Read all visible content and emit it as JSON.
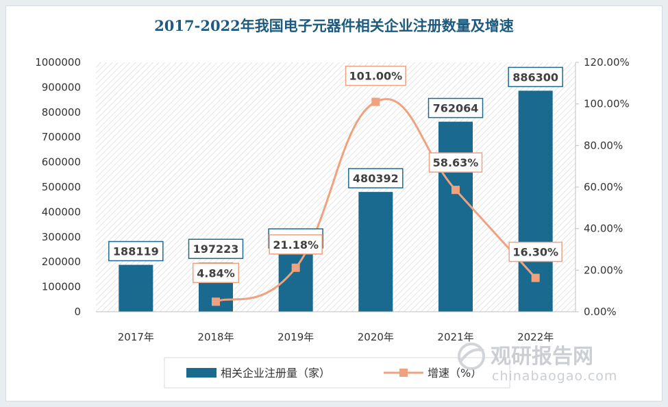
{
  "chart_data": {
    "type": "bar",
    "title": "2017-2022年我国电子元器件相关企业注册数量及增速",
    "categories": [
      "2017年",
      "2018年",
      "2019年",
      "2020年",
      "2021年",
      "2022年"
    ],
    "series": [
      {
        "name": "相关企业注册量（家）",
        "type": "bar",
        "axis": "left",
        "values": [
          188119,
          197223,
          239001,
          480392,
          762064,
          886300
        ],
        "labels": [
          "188119",
          "197223",
          "239001",
          "480392",
          "762064",
          "886300"
        ],
        "color": "#1a6a8f"
      },
      {
        "name": "增速（%）",
        "type": "line",
        "axis": "right",
        "values": [
          null,
          4.84,
          21.18,
          101.0,
          58.63,
          16.3
        ],
        "labels": [
          "",
          "4.84%",
          "21.18%",
          "101.00%",
          "58.63%",
          "16.30%"
        ],
        "color": "#f0a17e"
      }
    ],
    "y_left": {
      "min": 0,
      "max": 1000000,
      "ticks": [
        "0",
        "100000",
        "200000",
        "300000",
        "400000",
        "500000",
        "600000",
        "700000",
        "800000",
        "900000",
        "1000000"
      ]
    },
    "y_right": {
      "min": 0,
      "max": 120,
      "ticks": [
        "0.00%",
        "20.00%",
        "40.00%",
        "60.00%",
        "80.00%",
        "100.00%",
        "120.00%"
      ]
    },
    "grid": false,
    "legend_position": "bottom-left"
  },
  "watermark": {
    "cn": "观研报告网",
    "en": "chinabaogao.com",
    "icon": "chinabaogao-logo-icon"
  }
}
